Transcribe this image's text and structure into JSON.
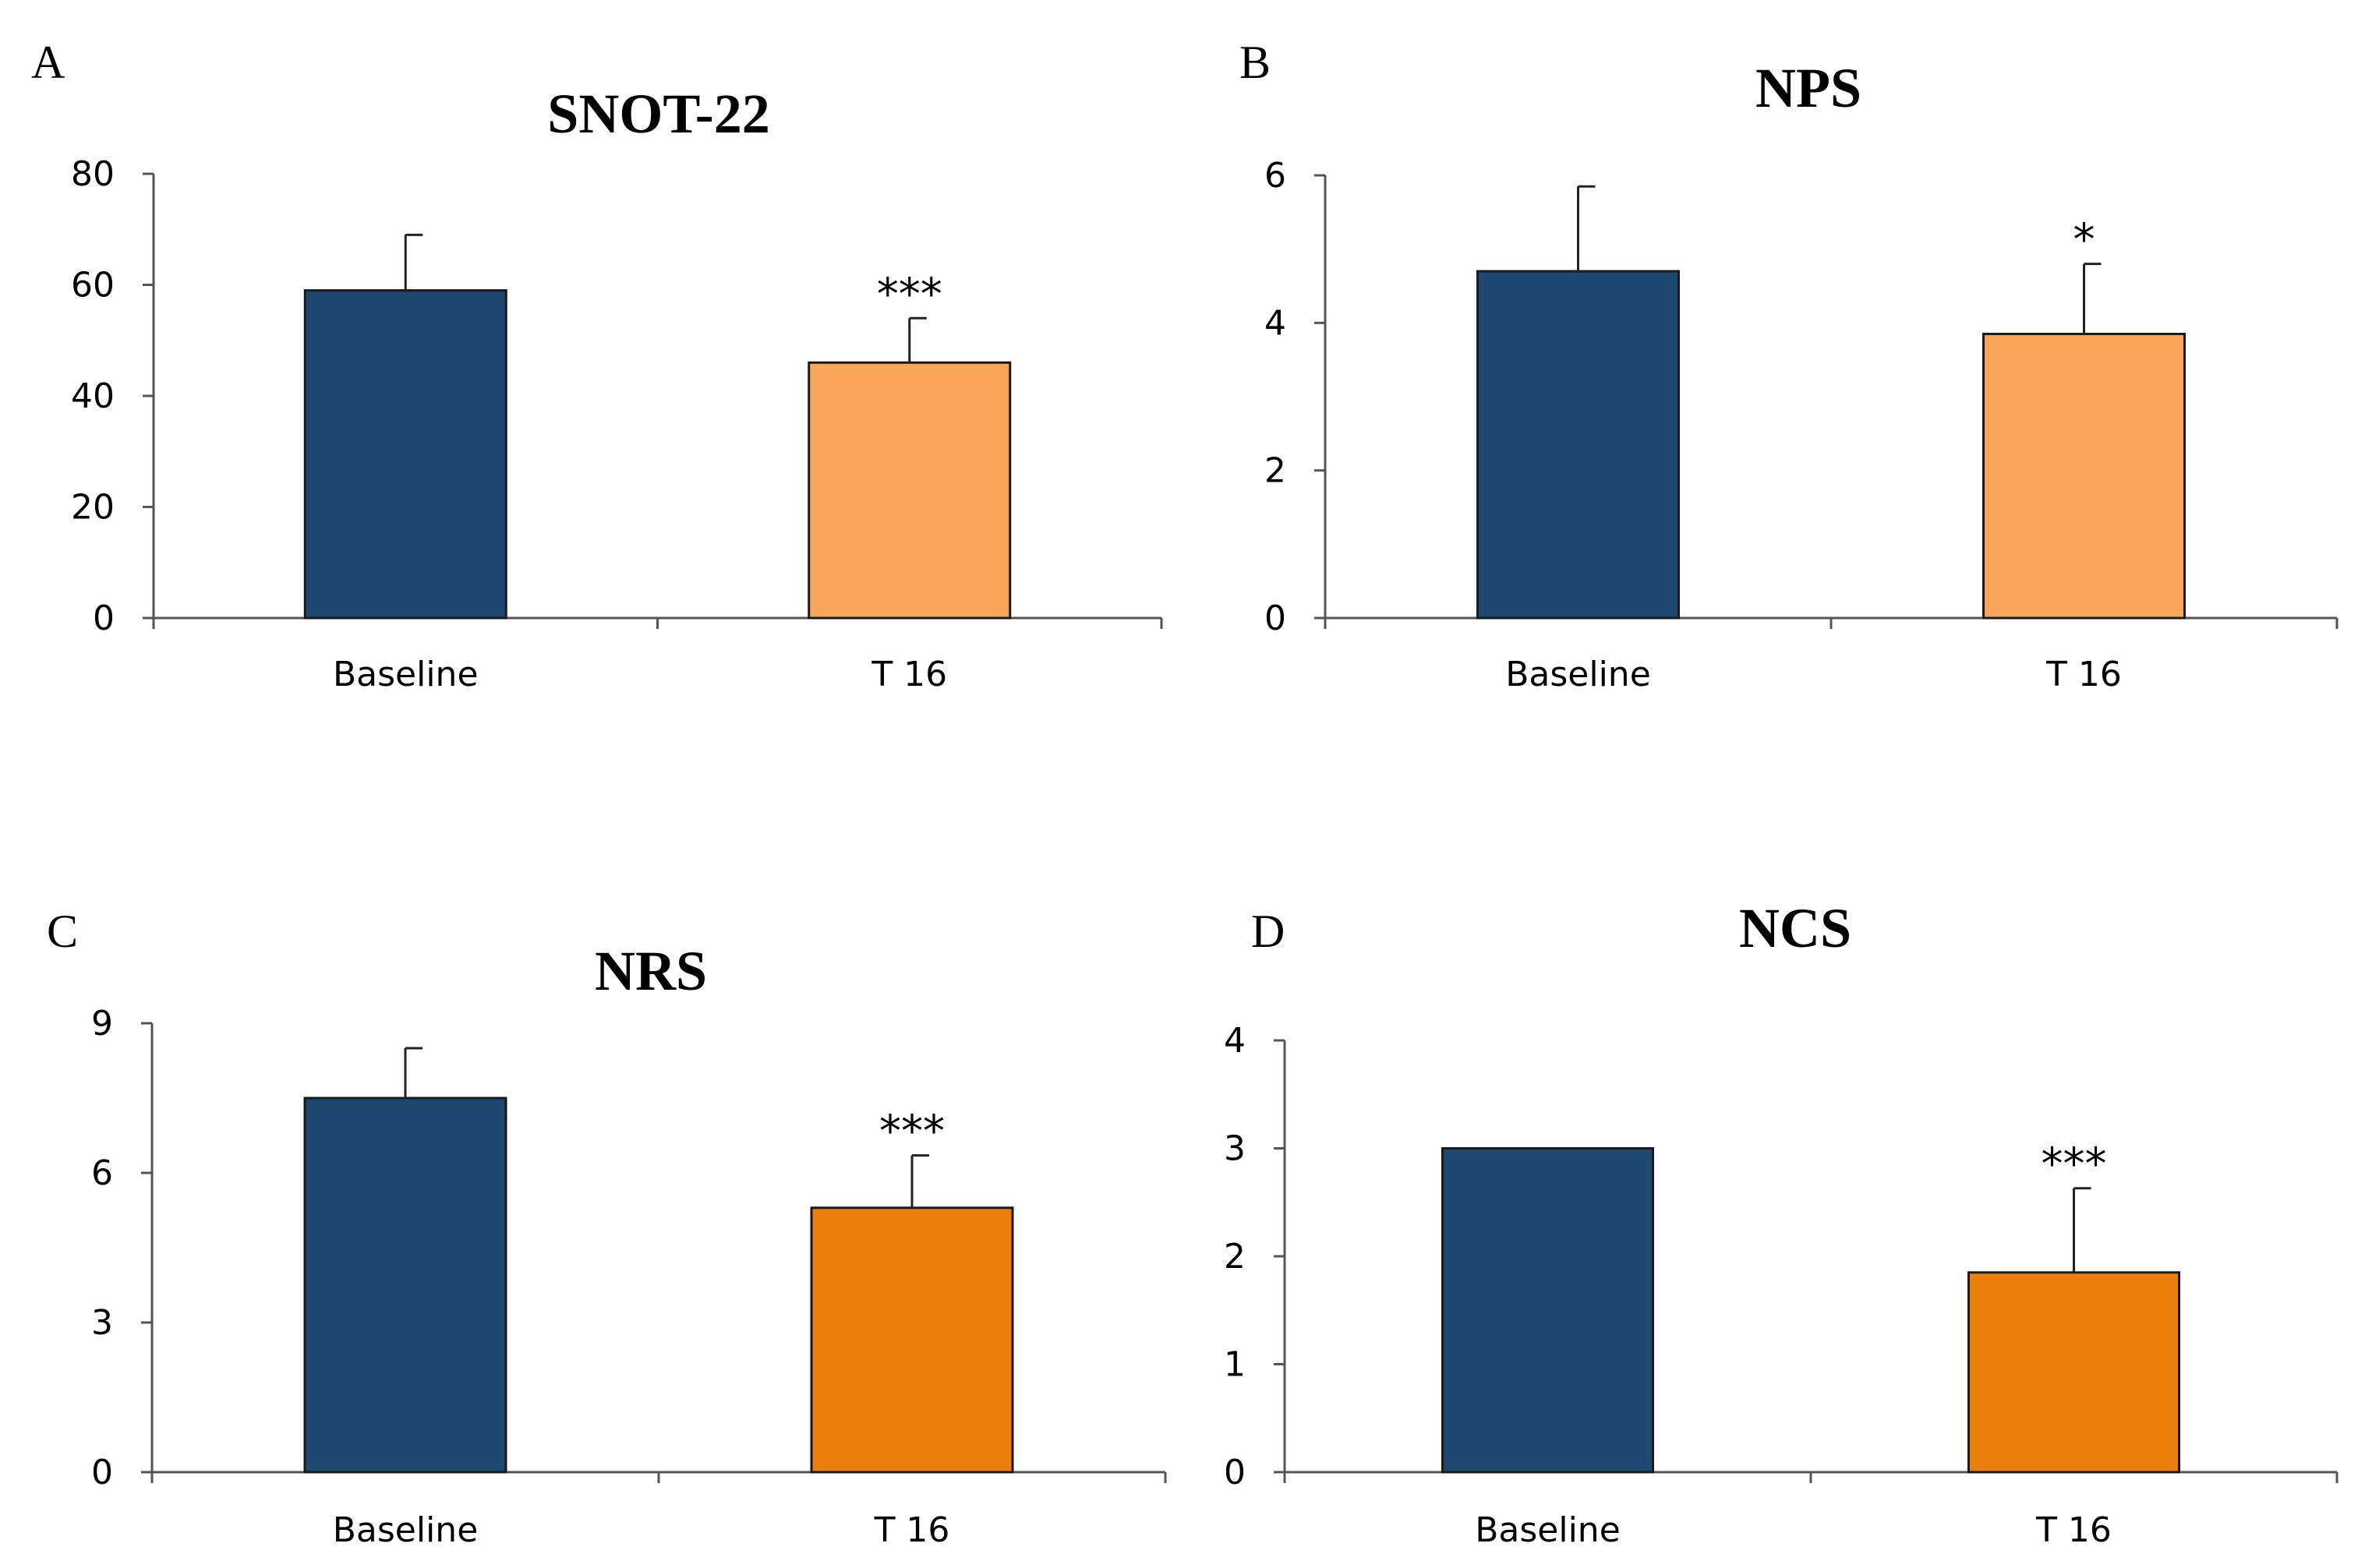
{
  "chart_data": [
    {
      "panel": "A",
      "type": "bar",
      "title": "SNOT-22",
      "categories": [
        "Baseline",
        "T 16"
      ],
      "values": [
        59,
        46
      ],
      "errors": [
        10,
        8
      ],
      "significance": [
        "",
        "***"
      ],
      "bar_colors": [
        "#1F4870",
        "#F9A65A"
      ],
      "ylim": [
        0,
        80
      ],
      "yticks": [
        "0",
        "20",
        "40",
        "60",
        "80"
      ],
      "xlabel": "",
      "ylabel": "",
      "grid": false
    },
    {
      "panel": "B",
      "type": "bar",
      "title": "NPS",
      "categories": [
        "Baseline",
        "T 16"
      ],
      "values": [
        4.7,
        3.85
      ],
      "errors": [
        1.15,
        0.95
      ],
      "significance": [
        "",
        "*"
      ],
      "bar_colors": [
        "#1F4870",
        "#F9A65A"
      ],
      "ylim": [
        0,
        6
      ],
      "yticks": [
        "0",
        "2",
        "4",
        "6"
      ],
      "xlabel": "",
      "ylabel": "",
      "grid": false
    },
    {
      "panel": "C",
      "type": "bar",
      "title": "NRS",
      "categories": [
        "Baseline",
        "T 16"
      ],
      "values": [
        7.5,
        5.3
      ],
      "errors": [
        1.0,
        1.05
      ],
      "significance": [
        "",
        "***"
      ],
      "bar_colors": [
        "#1F4870",
        "#EA7F0C"
      ],
      "ylim": [
        0,
        9
      ],
      "yticks": [
        "0",
        "3",
        "6",
        "9"
      ],
      "xlabel": "",
      "ylabel": "",
      "grid": false
    },
    {
      "panel": "D",
      "type": "bar",
      "title": "NCS",
      "categories": [
        "Baseline",
        "T 16"
      ],
      "values": [
        3.0,
        1.85
      ],
      "errors": [
        0,
        0.78
      ],
      "significance": [
        "",
        "***"
      ],
      "bar_colors": [
        "#1F4870",
        "#EA7F0C"
      ],
      "ylim": [
        0,
        4
      ],
      "yticks": [
        "0",
        "1",
        "2",
        "3",
        "4"
      ],
      "xlabel": "",
      "ylabel": "",
      "grid": false
    }
  ]
}
